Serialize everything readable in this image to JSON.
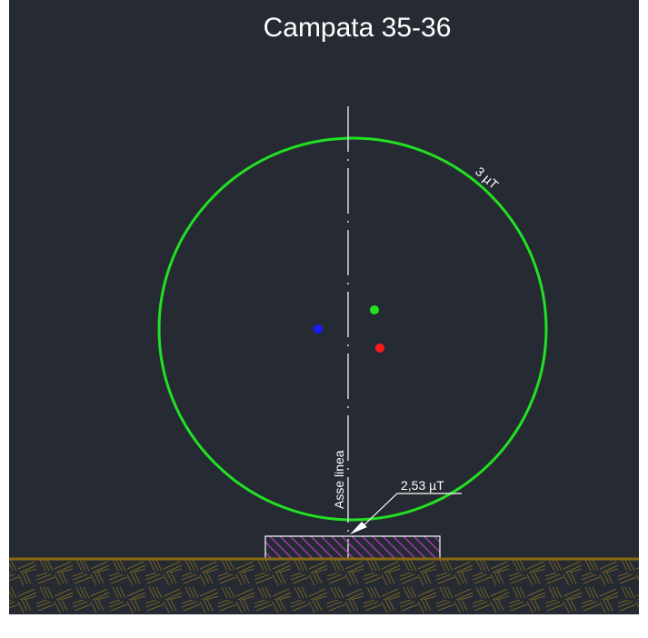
{
  "title": "Campata 35-36",
  "contour": {
    "label": "3 µT"
  },
  "axis": {
    "label": "Asse linea"
  },
  "measurement": {
    "label": "2,53 µT"
  }
}
